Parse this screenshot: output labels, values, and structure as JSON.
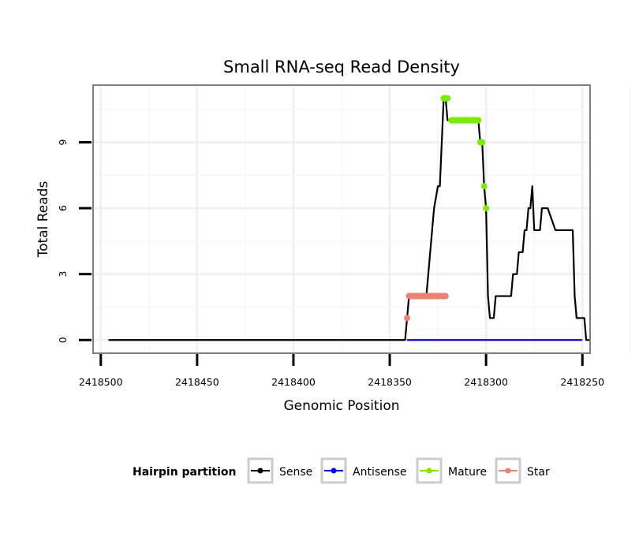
{
  "chart_data": {
    "type": "line",
    "title": "Small RNA-seq Read Density",
    "xlabel": "Genomic Position",
    "ylabel": "Total Reads",
    "x_reversed": true,
    "xlim": [
      2418504,
      2418246
    ],
    "ylim": [
      -0.6,
      11.6
    ],
    "x_ticks": [
      2418500,
      2418450,
      2418400,
      2418350,
      2418300,
      2418250
    ],
    "y_ticks": [
      0,
      3,
      6,
      9
    ],
    "x_tick_labels": [
      "2418500",
      "2418450",
      "2418400",
      "2418350",
      "2418300",
      "2418250"
    ],
    "y_tick_labels": [
      "0",
      "3",
      "6",
      "9"
    ],
    "grid": true,
    "legend": {
      "title": "Hairpin partition",
      "position": "bottom",
      "entries": [
        "Sense",
        "Antisense",
        "Mature",
        "Star"
      ]
    },
    "series": [
      {
        "name": "Sense",
        "color": "#000000",
        "style": "line",
        "x": [
          2418496,
          2418342,
          2418341,
          2418340,
          2418331,
          2418330,
          2418328,
          2418327,
          2418325,
          2418324,
          2418323,
          2418322,
          2418321,
          2418320,
          2418317,
          2418315,
          2418314,
          2418304,
          2418303,
          2418302,
          2418301,
          2418300,
          2418299,
          2418298,
          2418297,
          2418296,
          2418295,
          2418294,
          2418292,
          2418291,
          2418287,
          2418286,
          2418284,
          2418283,
          2418281,
          2418280,
          2418279,
          2418278,
          2418277,
          2418276,
          2418275,
          2418274,
          2418272,
          2418271,
          2418269,
          2418268,
          2418264,
          2418263,
          2418255,
          2418254,
          2418253,
          2418252,
          2418249,
          2418248,
          2418246
        ],
        "values": [
          0,
          0,
          1,
          2,
          2,
          3,
          5,
          6,
          7,
          7,
          9,
          11,
          11,
          10,
          10,
          10,
          10,
          10,
          9,
          9,
          7,
          6,
          2,
          1,
          1,
          1,
          2,
          2,
          2,
          2,
          2,
          3,
          3,
          4,
          4,
          5,
          5,
          6,
          6,
          7,
          5,
          5,
          5,
          6,
          6,
          6,
          5,
          5,
          5,
          2,
          1,
          1,
          1,
          0,
          0
        ]
      },
      {
        "name": "Antisense",
        "color": "#0000ff",
        "style": "line",
        "x": [
          2418341,
          2418250
        ],
        "values": [
          0,
          0
        ]
      },
      {
        "name": "Mature",
        "color": "#77ee00",
        "style": "points",
        "x": [
          2418322,
          2418321.5,
          2418321,
          2418320.5,
          2418320,
          2418318,
          2418317.5,
          2418317,
          2418316.5,
          2418316,
          2418315.5,
          2418315,
          2418314.5,
          2418314,
          2418313.5,
          2418313,
          2418312.5,
          2418312,
          2418311.5,
          2418311,
          2418310.5,
          2418310,
          2418309.5,
          2418309,
          2418308.5,
          2418308,
          2418307.5,
          2418307,
          2418306.5,
          2418306,
          2418305.5,
          2418305,
          2418304.5,
          2418304,
          2418303,
          2418302,
          2418301,
          2418300
        ],
        "values": [
          11,
          11,
          11,
          11,
          11,
          10,
          10,
          10,
          10,
          10,
          10,
          10,
          10,
          10,
          10,
          10,
          10,
          10,
          10,
          10,
          10,
          10,
          10,
          10,
          10,
          10,
          10,
          10,
          10,
          10,
          10,
          10,
          10,
          10,
          9,
          9,
          7,
          6
        ]
      },
      {
        "name": "Star",
        "color": "#f08070",
        "style": "points",
        "x": [
          2418341,
          2418340,
          2418339.5,
          2418339,
          2418338.5,
          2418338,
          2418337.5,
          2418337,
          2418336.5,
          2418336,
          2418335.5,
          2418335,
          2418334.5,
          2418334,
          2418333.5,
          2418333,
          2418332.5,
          2418332,
          2418331.5,
          2418331,
          2418330.5,
          2418330,
          2418329.5,
          2418329,
          2418328.5,
          2418328,
          2418327.5,
          2418327,
          2418326.5,
          2418326,
          2418325.5,
          2418325,
          2418324.5,
          2418324,
          2418323.5,
          2418323,
          2418322.5,
          2418322,
          2418321.5,
          2418321
        ],
        "values": [
          1,
          2,
          2,
          2,
          2,
          2,
          2,
          2,
          2,
          2,
          2,
          2,
          2,
          2,
          2,
          2,
          2,
          2,
          2,
          2,
          2,
          2,
          2,
          2,
          2,
          2,
          2,
          2,
          2,
          2,
          2,
          2,
          2,
          2,
          2,
          2,
          2,
          2,
          2,
          2
        ]
      }
    ]
  }
}
